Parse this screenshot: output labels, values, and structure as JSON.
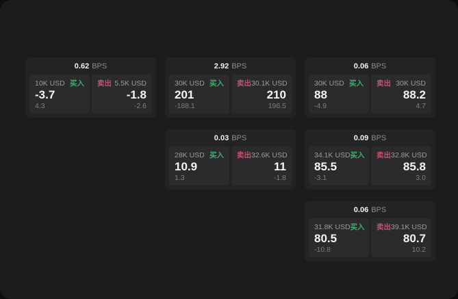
{
  "labels": {
    "bps_unit": "BPS",
    "buy": "买入",
    "sell": "卖出"
  },
  "colors": {
    "backdrop": "#0e0e0f",
    "panel_bg": "#1c1c1d",
    "card_bg": "#232325",
    "tile_bg": "#2b2b2d",
    "buy_green": "#3fae6e",
    "sell_red": "#c8506a",
    "value_white": "#f5f5f7",
    "label_gray": "#9b9b9f"
  },
  "cards": [
    {
      "bps": "0.62",
      "buy": {
        "amount": "10K USD",
        "price": "-3.7",
        "sub": "4.3"
      },
      "sell": {
        "amount": "5.5K USD",
        "price": "-1.8",
        "sub": "-2.6"
      }
    },
    {
      "bps": "2.92",
      "buy": {
        "amount": "30K USD",
        "price": "201",
        "sub": "-188.1"
      },
      "sell": {
        "amount": "30.1K USD",
        "price": "210",
        "sub": "196.5"
      }
    },
    {
      "bps": "0.06",
      "buy": {
        "amount": "30K USD",
        "price": "88",
        "sub": "-4.9"
      },
      "sell": {
        "amount": "30K USD",
        "price": "88.2",
        "sub": "4.7"
      }
    },
    {
      "bps": "0.03",
      "buy": {
        "amount": "28K USD",
        "price": "10.9",
        "sub": "1.3"
      },
      "sell": {
        "amount": "32.6K USD",
        "price": "11",
        "sub": "-1.8"
      }
    },
    {
      "bps": "0.09",
      "buy": {
        "amount": "34.1K USD",
        "price": "85.5",
        "sub": "-3.1"
      },
      "sell": {
        "amount": "32.8K USD",
        "price": "85.8",
        "sub": "3.0"
      }
    },
    {
      "bps": "0.06",
      "buy": {
        "amount": "31.8K USD",
        "price": "80.5",
        "sub": "-10.8"
      },
      "sell": {
        "amount": "39.1K USD",
        "price": "80.7",
        "sub": "10.2"
      }
    }
  ]
}
